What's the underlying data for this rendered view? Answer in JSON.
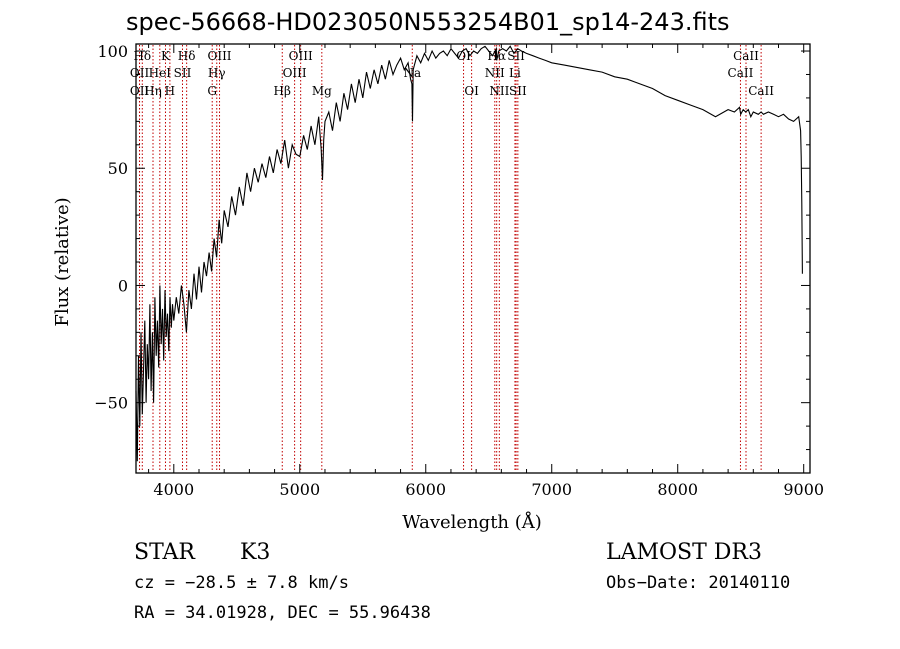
{
  "chart_data": {
    "type": "line",
    "title": "spec-56668-HD023050N553254B01_sp14-243.fits",
    "xlabel": "Wavelength (Å)",
    "ylabel": "Flux (relative)",
    "xlim": [
      3700,
      9050
    ],
    "ylim": [
      -80,
      103
    ],
    "x_ticks": [
      4000,
      5000,
      6000,
      7000,
      8000,
      9000
    ],
    "y_ticks": [
      -50,
      0,
      50,
      100
    ],
    "grid": false,
    "series": [
      {
        "name": "spectrum",
        "color": "#000000",
        "x": [
          3700,
          3710,
          3720,
          3730,
          3740,
          3750,
          3760,
          3770,
          3780,
          3790,
          3800,
          3810,
          3820,
          3830,
          3840,
          3850,
          3860,
          3870,
          3880,
          3890,
          3900,
          3910,
          3920,
          3930,
          3940,
          3950,
          3960,
          3970,
          3980,
          3990,
          4000,
          4020,
          4040,
          4060,
          4080,
          4100,
          4120,
          4140,
          4160,
          4180,
          4200,
          4220,
          4240,
          4260,
          4280,
          4300,
          4320,
          4340,
          4360,
          4380,
          4400,
          4430,
          4460,
          4490,
          4520,
          4550,
          4580,
          4610,
          4640,
          4670,
          4700,
          4730,
          4760,
          4790,
          4820,
          4850,
          4880,
          4910,
          4940,
          4970,
          5000,
          5030,
          5060,
          5090,
          5120,
          5150,
          5170,
          5180,
          5190,
          5200,
          5230,
          5260,
          5290,
          5320,
          5350,
          5380,
          5410,
          5440,
          5470,
          5500,
          5530,
          5560,
          5590,
          5620,
          5650,
          5680,
          5710,
          5740,
          5770,
          5800,
          5830,
          5860,
          5880,
          5890,
          5895,
          5900,
          5910,
          5930,
          5960,
          5990,
          6020,
          6050,
          6080,
          6110,
          6140,
          6170,
          6200,
          6230,
          6260,
          6290,
          6320,
          6350,
          6380,
          6410,
          6440,
          6470,
          6500,
          6530,
          6560,
          6563,
          6580,
          6610,
          6640,
          6670,
          6700,
          6730,
          6760,
          6800,
          6850,
          6900,
          6950,
          7000,
          7100,
          7200,
          7300,
          7400,
          7500,
          7600,
          7700,
          7800,
          7900,
          8000,
          8100,
          8200,
          8300,
          8400,
          8450,
          8490,
          8500,
          8520,
          8540,
          8560,
          8580,
          8600,
          8640,
          8662,
          8680,
          8720,
          8760,
          8800,
          8840,
          8880,
          8920,
          8960,
          8975,
          8980,
          8985,
          8990
        ],
        "y": [
          -45,
          -75,
          -30,
          -60,
          -20,
          -55,
          -35,
          -15,
          -50,
          -25,
          -40,
          -8,
          -45,
          -20,
          -50,
          -5,
          -30,
          -15,
          -35,
          0,
          -25,
          -10,
          -32,
          -2,
          -22,
          -12,
          -28,
          -5,
          -18,
          -8,
          -15,
          -5,
          -12,
          0,
          -8,
          -20,
          -2,
          -10,
          5,
          -6,
          8,
          -3,
          10,
          4,
          14,
          6,
          20,
          12,
          28,
          18,
          32,
          25,
          38,
          30,
          42,
          34,
          48,
          40,
          50,
          44,
          52,
          46,
          55,
          48,
          58,
          52,
          62,
          50,
          60,
          56,
          55,
          64,
          58,
          68,
          60,
          72,
          58,
          45,
          62,
          70,
          74,
          66,
          78,
          70,
          82,
          75,
          86,
          78,
          88,
          80,
          91,
          84,
          92,
          86,
          94,
          88,
          96,
          90,
          94,
          97,
          92,
          95,
          88,
          86,
          70,
          92,
          94,
          98,
          95,
          99,
          96,
          100,
          97,
          99,
          100,
          98,
          101,
          99,
          97,
          100,
          101,
          98,
          100,
          99,
          101,
          102,
          100,
          98,
          101,
          96,
          100,
          101,
          100,
          102,
          99,
          101,
          100,
          99,
          98,
          97,
          96,
          95,
          94,
          93,
          92,
          91,
          89,
          88,
          86,
          84,
          81,
          79,
          77,
          75,
          72,
          75,
          74,
          76,
          73,
          75,
          74,
          75,
          72,
          74,
          73,
          74,
          73,
          74,
          73,
          72,
          73,
          71,
          70,
          72,
          66,
          55,
          35,
          5
        ]
      }
    ],
    "line_markers": [
      {
        "label": "Hδ",
        "wavelength": 3750,
        "row": 1
      },
      {
        "label": "OII",
        "wavelength": 3728,
        "row": 2
      },
      {
        "label": "OII",
        "wavelength": 3728,
        "row": 3
      },
      {
        "label": "K",
        "wavelength": 3934,
        "row": 1
      },
      {
        "label": "HeI",
        "wavelength": 3889,
        "row": 2
      },
      {
        "label": "Hη",
        "wavelength": 3835,
        "row": 3
      },
      {
        "label": "Hδ",
        "wavelength": 4102,
        "row": 1
      },
      {
        "label": "SII",
        "wavelength": 4069,
        "row": 2
      },
      {
        "label": "H",
        "wavelength": 3969,
        "row": 3
      },
      {
        "label": "OIII",
        "wavelength": 4363,
        "row": 1
      },
      {
        "label": "Hγ",
        "wavelength": 4341,
        "row": 2
      },
      {
        "label": "G",
        "wavelength": 4305,
        "row": 3
      },
      {
        "label": "Hβ",
        "wavelength": 4861,
        "row": 3
      },
      {
        "label": "OIII",
        "wavelength": 5007,
        "row": 1
      },
      {
        "label": "OIII",
        "wavelength": 4959,
        "row": 2
      },
      {
        "label": "Mg",
        "wavelength": 5175,
        "row": 3
      },
      {
        "label": "Na",
        "wavelength": 5893,
        "row": 2
      },
      {
        "label": "OI",
        "wavelength": 6300,
        "row": 1
      },
      {
        "label": "OI",
        "wavelength": 6364,
        "row": 3
      },
      {
        "label": "Hα",
        "wavelength": 6563,
        "row": 1
      },
      {
        "label": "NII",
        "wavelength": 6548,
        "row": 2
      },
      {
        "label": "NII",
        "wavelength": 6584,
        "row": 3
      },
      {
        "label": "SII",
        "wavelength": 6717,
        "row": 1
      },
      {
        "label": "Li",
        "wavelength": 6708,
        "row": 2
      },
      {
        "label": "SII",
        "wavelength": 6731,
        "row": 3
      },
      {
        "label": "CaII",
        "wavelength": 8542,
        "row": 1
      },
      {
        "label": "CaII",
        "wavelength": 8498,
        "row": 2
      },
      {
        "label": "CaII",
        "wavelength": 8662,
        "row": 3
      }
    ]
  },
  "info": {
    "object_class": "STAR",
    "subclass": "K3",
    "survey": "LAMOST DR3",
    "cz": "cz = −28.5 ± 7.8 km/s",
    "obs_date": "Obs−Date: 20140110",
    "coords": "RA =  34.01928, DEC =  55.96438"
  }
}
